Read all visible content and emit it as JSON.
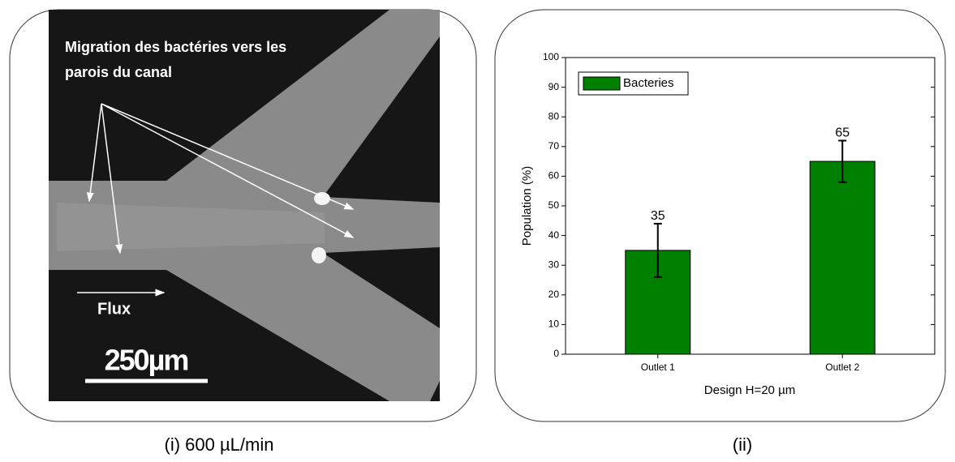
{
  "panel_i": {
    "annotation": [
      "Migration des bactéries vers les",
      "parois du canal"
    ],
    "flow_label": "Flux",
    "scale_label": "250µm",
    "caption": "(i) 600 µL/min"
  },
  "panel_ii": {
    "caption": "(ii)"
  },
  "chart_data": {
    "type": "bar",
    "xlabel": "Design H=20 µm",
    "ylabel": "Population (%)",
    "categories": [
      "Outlet 1",
      "Outlet 2"
    ],
    "series": [
      {
        "name": "Bacteries",
        "color": "#008000",
        "values": [
          35,
          65
        ],
        "errors": [
          9,
          7
        ]
      }
    ],
    "ylim": [
      0,
      100
    ],
    "yticks": [
      0,
      10,
      20,
      30,
      40,
      50,
      60,
      70,
      80,
      90,
      100
    ],
    "legend": "upper left"
  }
}
